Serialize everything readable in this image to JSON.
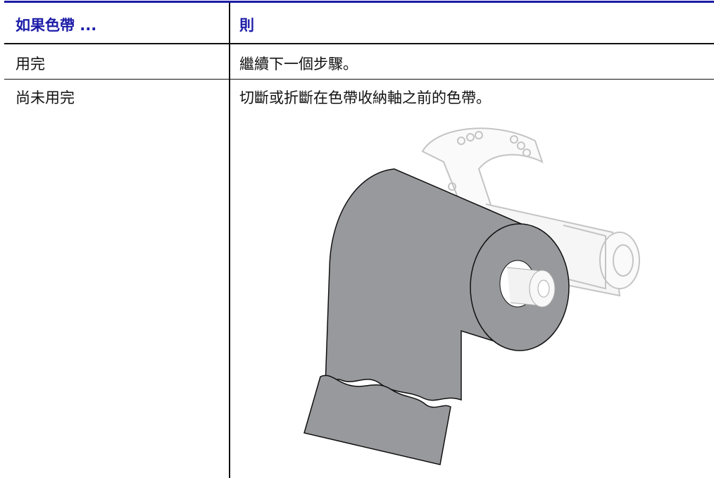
{
  "table": {
    "headers": [
      "如果色帶 ...",
      "則"
    ],
    "rows": [
      [
        "用完",
        "繼續下一個步驟。"
      ],
      [
        "尚未用完",
        "切斷或折斷在色帶收納軸之前的色帶。"
      ]
    ]
  }
}
